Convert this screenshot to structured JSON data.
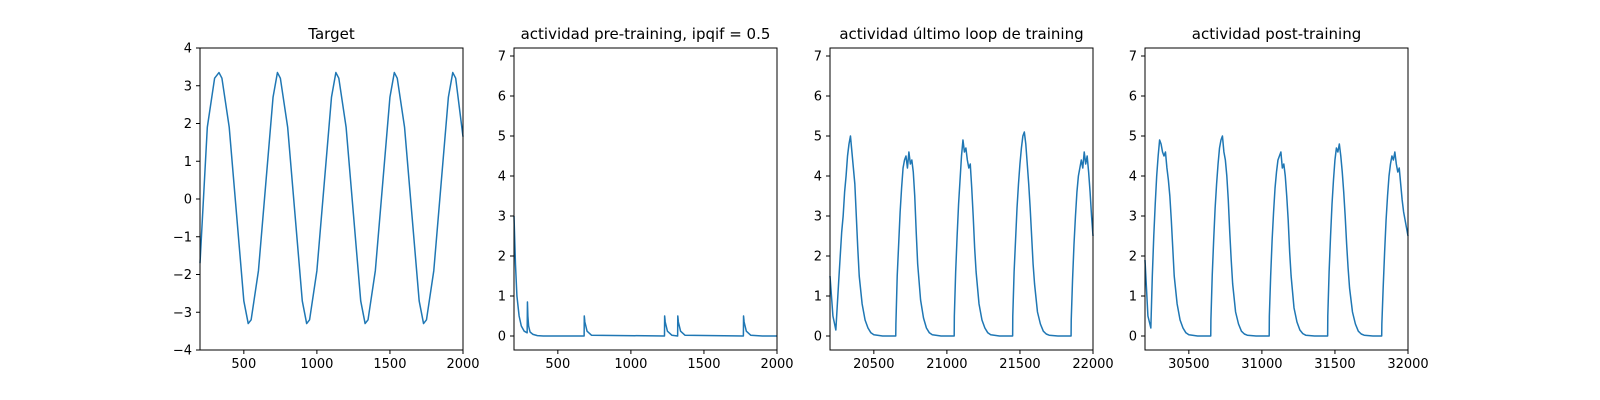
{
  "accent_color": "#1f77b4",
  "chart_data": [
    {
      "type": "line",
      "title": "Target",
      "xlabel": "",
      "ylabel": "",
      "xlim": [
        200,
        2000
      ],
      "ylim": [
        -4,
        4
      ],
      "xticks": [
        500,
        1000,
        1500,
        2000
      ],
      "yticks": [
        -4,
        -3,
        -2,
        -1,
        0,
        1,
        2,
        3,
        4
      ],
      "ytick_labels": [
        "−4",
        "−3",
        "−2",
        "−1",
        "0",
        "1",
        "2",
        "3",
        "4"
      ],
      "grid": false,
      "series": [
        {
          "color": "#1f77b4",
          "x": [
            200,
            250,
            300,
            330,
            350,
            400,
            450,
            500,
            530,
            550,
            600,
            650,
            700,
            730,
            750,
            800,
            850,
            900,
            930,
            950,
            1000,
            1050,
            1100,
            1130,
            1150,
            1200,
            1250,
            1300,
            1330,
            1350,
            1400,
            1450,
            1500,
            1530,
            1550,
            1600,
            1650,
            1700,
            1730,
            1750,
            1800,
            1850,
            1900,
            1930,
            1950,
            2000
          ],
          "y": [
            -1.7,
            1.9,
            3.2,
            3.35,
            3.2,
            1.9,
            -0.4,
            -2.7,
            -3.3,
            -3.2,
            -1.9,
            0.4,
            2.7,
            3.35,
            3.2,
            1.9,
            -0.4,
            -2.7,
            -3.3,
            -3.2,
            -1.9,
            0.4,
            2.7,
            3.35,
            3.2,
            1.9,
            -0.4,
            -2.7,
            -3.3,
            -3.2,
            -1.9,
            0.4,
            2.7,
            3.35,
            3.2,
            1.9,
            -0.4,
            -2.7,
            -3.3,
            -3.2,
            -1.9,
            0.4,
            2.7,
            3.35,
            3.2,
            1.65
          ]
        }
      ]
    },
    {
      "type": "line",
      "title": "actividad pre-training, ipqif = 0.5",
      "xlabel": "",
      "ylabel": "",
      "xlim": [
        200,
        2000
      ],
      "ylim": [
        -0.35,
        7.2
      ],
      "xticks": [
        500,
        1000,
        1500,
        2000
      ],
      "yticks": [
        0,
        1,
        2,
        3,
        4,
        5,
        6,
        7
      ],
      "grid": false,
      "series": [
        {
          "color": "#1f77b4",
          "x": [
            200,
            205,
            210,
            220,
            235,
            250,
            270,
            290,
            292,
            295,
            300,
            310,
            330,
            360,
            400,
            680,
            681,
            685,
            700,
            730,
            1230,
            1231,
            1235,
            1250,
            1280,
            1320,
            1321,
            1325,
            1340,
            1370,
            1770,
            1771,
            1775,
            1790,
            1820,
            1900,
            2000
          ],
          "y": [
            3.0,
            2.4,
            1.8,
            1.0,
            0.5,
            0.25,
            0.12,
            0.08,
            0.85,
            0.5,
            0.25,
            0.1,
            0.04,
            0.01,
            0.0,
            0.0,
            0.5,
            0.35,
            0.12,
            0.02,
            0.0,
            0.5,
            0.35,
            0.12,
            0.02,
            0.0,
            0.5,
            0.35,
            0.12,
            0.02,
            0.0,
            0.5,
            0.35,
            0.12,
            0.02,
            0.0,
            0.0
          ]
        }
      ]
    },
    {
      "type": "line",
      "title": "actividad último loop de training",
      "xlabel": "",
      "ylabel": "",
      "xlim": [
        20200,
        22000
      ],
      "ylim": [
        -0.35,
        7.2
      ],
      "xticks": [
        20500,
        21000,
        21500,
        22000
      ],
      "yticks": [
        0,
        1,
        2,
        3,
        4,
        5,
        6,
        7
      ],
      "grid": false,
      "series": [
        {
          "color": "#1f77b4",
          "x": [
            20200,
            20220,
            20240,
            20260,
            20270,
            20280,
            20290,
            20300,
            20310,
            20320,
            20330,
            20340,
            20350,
            20360,
            20370,
            20380,
            20390,
            20400,
            20420,
            20440,
            20460,
            20480,
            20500,
            20560,
            20650,
            20651,
            20660,
            20670,
            20680,
            20690,
            20700,
            20710,
            20720,
            20730,
            20740,
            20750,
            20760,
            20770,
            20780,
            20790,
            20800,
            20820,
            20840,
            20860,
            20880,
            20900,
            20960,
            21050,
            21051,
            21060,
            21070,
            21080,
            21090,
            21100,
            21110,
            21120,
            21130,
            21140,
            21150,
            21160,
            21170,
            21180,
            21190,
            21200,
            21220,
            21240,
            21260,
            21280,
            21300,
            21360,
            21450,
            21451,
            21460,
            21470,
            21480,
            21490,
            21500,
            21510,
            21520,
            21530,
            21540,
            21550,
            21560,
            21570,
            21580,
            21590,
            21600,
            21620,
            21640,
            21660,
            21680,
            21700,
            21760,
            21850,
            21851,
            21860,
            21870,
            21880,
            21890,
            21900,
            21910,
            21920,
            21930,
            21940,
            21950,
            21960,
            21970,
            21980,
            21990,
            22000
          ],
          "y": [
            1.5,
            0.5,
            0.15,
            1.4,
            2.0,
            2.6,
            3.0,
            3.6,
            4.0,
            4.5,
            4.8,
            5.0,
            4.6,
            4.2,
            3.8,
            3.0,
            2.2,
            1.5,
            0.8,
            0.4,
            0.2,
            0.08,
            0.03,
            0.0,
            0.0,
            0.3,
            1.5,
            2.3,
            3.1,
            3.7,
            4.2,
            4.4,
            4.5,
            4.2,
            4.6,
            4.3,
            4.4,
            4.1,
            3.5,
            2.6,
            1.8,
            0.9,
            0.45,
            0.2,
            0.08,
            0.03,
            0.0,
            0.0,
            0.5,
            1.6,
            2.5,
            3.3,
            3.9,
            4.5,
            4.9,
            4.6,
            4.7,
            4.4,
            4.2,
            4.3,
            3.7,
            3.0,
            2.2,
            1.6,
            0.8,
            0.4,
            0.2,
            0.08,
            0.03,
            0.0,
            0.0,
            0.5,
            1.6,
            2.4,
            3.2,
            3.8,
            4.3,
            4.7,
            5.0,
            5.1,
            4.8,
            4.3,
            3.8,
            3.2,
            2.5,
            1.8,
            1.3,
            0.6,
            0.3,
            0.12,
            0.05,
            0.02,
            0.0,
            0.0,
            0.4,
            1.4,
            2.3,
            3.0,
            3.6,
            4.0,
            4.2,
            4.4,
            4.2,
            4.6,
            4.3,
            4.5,
            4.1,
            3.6,
            3.0,
            2.5
          ]
        }
      ]
    },
    {
      "type": "line",
      "title": "actividad post-training",
      "xlabel": "",
      "ylabel": "",
      "xlim": [
        30200,
        32000
      ],
      "ylim": [
        -0.35,
        7.2
      ],
      "xticks": [
        30500,
        31000,
        31500,
        32000
      ],
      "yticks": [
        0,
        1,
        2,
        3,
        4,
        5,
        6,
        7
      ],
      "grid": false,
      "series": [
        {
          "color": "#1f77b4",
          "x": [
            30200,
            30220,
            30240,
            30250,
            30260,
            30270,
            30280,
            30290,
            30300,
            30310,
            30320,
            30330,
            30340,
            30350,
            30360,
            30370,
            30380,
            30390,
            30400,
            30420,
            30440,
            30460,
            30480,
            30500,
            30560,
            30650,
            30651,
            30660,
            30670,
            30680,
            30690,
            30700,
            30710,
            30720,
            30730,
            30740,
            30750,
            30760,
            30770,
            30780,
            30790,
            30800,
            30820,
            30840,
            30860,
            30880,
            30900,
            30960,
            31050,
            31051,
            31060,
            31070,
            31080,
            31090,
            31100,
            31110,
            31120,
            31130,
            31140,
            31150,
            31160,
            31170,
            31180,
            31190,
            31200,
            31220,
            31240,
            31260,
            31280,
            31300,
            31360,
            31450,
            31451,
            31460,
            31470,
            31480,
            31490,
            31500,
            31510,
            31520,
            31530,
            31540,
            31550,
            31560,
            31570,
            31580,
            31590,
            31600,
            31620,
            31640,
            31660,
            31680,
            31700,
            31760,
            31820,
            31821,
            31830,
            31840,
            31850,
            31860,
            31870,
            31880,
            31890,
            31900,
            31910,
            31920,
            31930,
            31940,
            31950,
            31960,
            31970,
            31980,
            31990,
            32000
          ],
          "y": [
            1.9,
            0.5,
            0.2,
            1.5,
            2.5,
            3.3,
            4.0,
            4.5,
            4.9,
            4.8,
            4.6,
            4.5,
            4.6,
            4.2,
            3.9,
            3.5,
            2.9,
            2.2,
            1.5,
            0.8,
            0.4,
            0.2,
            0.08,
            0.03,
            0.0,
            0.0,
            0.4,
            1.5,
            2.4,
            3.2,
            3.8,
            4.3,
            4.7,
            4.9,
            5.0,
            4.6,
            4.4,
            4.0,
            3.4,
            2.6,
            1.9,
            1.3,
            0.6,
            0.3,
            0.12,
            0.05,
            0.02,
            0.0,
            0.0,
            0.5,
            1.5,
            2.4,
            3.1,
            3.7,
            4.1,
            4.4,
            4.5,
            4.6,
            4.2,
            4.3,
            4.0,
            3.5,
            2.9,
            2.1,
            1.5,
            0.7,
            0.35,
            0.15,
            0.06,
            0.02,
            0.0,
            0.0,
            0.5,
            1.6,
            2.5,
            3.3,
            3.9,
            4.4,
            4.7,
            4.6,
            4.8,
            4.5,
            4.1,
            3.6,
            3.0,
            2.3,
            1.7,
            1.2,
            0.6,
            0.3,
            0.12,
            0.05,
            0.02,
            0.0,
            0.0,
            0.3,
            1.2,
            2.1,
            2.9,
            3.5,
            4.0,
            4.3,
            4.5,
            4.4,
            4.6,
            4.3,
            4.1,
            4.2,
            3.8,
            3.4,
            3.1,
            2.9,
            2.7,
            2.5
          ]
        }
      ]
    }
  ]
}
